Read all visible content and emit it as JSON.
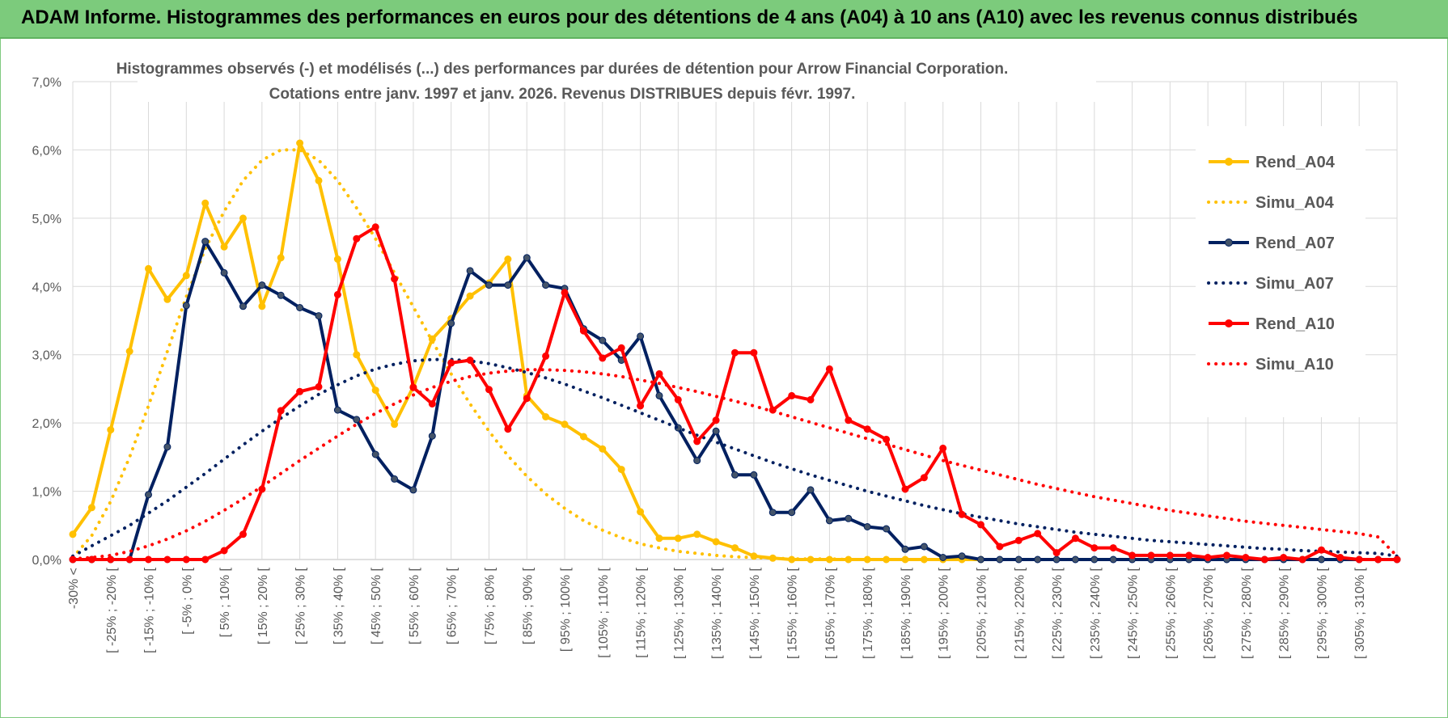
{
  "banner": {
    "title": "ADAM Informe. Histogrammes des performances en euros pour des détentions de 4 ans (A04) à 10 ans (A10) avec les revenus connus distribués"
  },
  "colors": {
    "banner": "#7ccb7c",
    "A04": "#FFC000",
    "A07": "#002060",
    "A10": "#FF0000",
    "grid": "#d9d9d9",
    "axis_text": "#595959"
  },
  "chart_data": {
    "type": "line",
    "title": "Histogrammes observés (-) et modélisés (...) des performances par durées de détention pour Arrow Financial Corporation.",
    "subtitle": "Cotations entre janv. 1997 et janv. 2026. Revenus DISTRIBUES depuis févr. 1997.",
    "xlabel": "",
    "ylabel": "",
    "y_ticks": [
      "0,0%",
      "1,0%",
      "2,0%",
      "3,0%",
      "4,0%",
      "5,0%",
      "6,0%",
      "7,0%"
    ],
    "ylim": [
      0,
      7
    ],
    "grid": true,
    "legend_position": "right",
    "x_labels_shown": [
      "-30% <",
      "[ -25% ; -20% [",
      "[ -15% ; -10% [",
      "[ -5% ; 0% [",
      "[ 5% ; 10% [",
      "[ 15% ; 20% [",
      "[ 25% ; 30% [",
      "[ 35% ; 40% [",
      "[ 45% ; 50% [",
      "[ 55% ; 60% [",
      "[ 65% ; 70% [",
      "[ 75% ; 80% [",
      "[ 85% ; 90% [",
      "[ 95% ; 100% [",
      "[ 105% ; 110% [",
      "[ 115% ; 120% [",
      "[ 125% ; 130% [",
      "[ 135% ; 140% [",
      "[ 145% ; 150% [",
      "[ 155% ; 160% [",
      "[ 165% ; 170% [",
      "[ 175% ; 180% [",
      "[ 185% ; 190% [",
      "[ 195% ; 200% [",
      "[ 205% ; 210% [",
      "[ 215% ; 220% [",
      "[ 225% ; 230% [",
      "[ 235% ; 240% [",
      "[ 245% ; 250% [",
      "[ 255% ; 260% [",
      "[ 265% ; 270% [",
      "[ 275% ; 280% [",
      "[ 285% ; 290% [",
      "[ 295% ; 300% [",
      "[ 305% ; 310% ["
    ],
    "series": [
      {
        "name": "Rend_A04",
        "style": "solid",
        "color": "#FFC000",
        "values": [
          0.37,
          0.76,
          1.9,
          3.05,
          4.26,
          3.81,
          4.16,
          5.22,
          4.58,
          5.0,
          3.71,
          4.42,
          6.1,
          5.55,
          4.4,
          3.0,
          2.48,
          1.98,
          2.53,
          3.23,
          3.53,
          3.86,
          4.05,
          4.4,
          2.4,
          2.09,
          1.98,
          1.8,
          1.62,
          1.32,
          0.7,
          0.31,
          0.31,
          0.37,
          0.26,
          0.17,
          0.05,
          0.02,
          0,
          0,
          0,
          0,
          0,
          0,
          0,
          0,
          0,
          0,
          0
        ]
      },
      {
        "name": "Simu_A04",
        "style": "dotted",
        "color": "#FFC000",
        "values": [
          0.03,
          0.35,
          0.85,
          1.5,
          2.25,
          3.05,
          3.85,
          4.55,
          5.1,
          5.55,
          5.85,
          6.0,
          6.0,
          5.85,
          5.55,
          5.15,
          4.7,
          4.2,
          3.7,
          3.2,
          2.72,
          2.28,
          1.88,
          1.52,
          1.22,
          0.96,
          0.75,
          0.57,
          0.43,
          0.32,
          0.23,
          0.17,
          0.12,
          0.09,
          0.06,
          0.04,
          0.03,
          0.02,
          0.01,
          0.01,
          0.01,
          0,
          0,
          0,
          0,
          0,
          0,
          0,
          0
        ]
      },
      {
        "name": "Rend_A07",
        "style": "solid",
        "color": "#002060",
        "values": [
          0,
          0,
          0,
          0,
          0.95,
          1.65,
          3.72,
          4.66,
          4.2,
          3.71,
          4.02,
          3.87,
          3.69,
          3.57,
          2.19,
          2.05,
          1.54,
          1.18,
          1.02,
          1.81,
          3.46,
          4.23,
          4.02,
          4.02,
          4.42,
          4.02,
          3.97,
          3.38,
          3.21,
          2.92,
          3.27,
          2.4,
          1.93,
          1.45,
          1.88,
          1.24,
          1.24,
          0.69,
          0.69,
          1.02,
          0.57,
          0.6,
          0.48,
          0.45,
          0.15,
          0.19,
          0.03,
          0.05,
          0,
          0,
          0,
          0,
          0,
          0,
          0,
          0,
          0,
          0,
          0,
          0,
          0,
          0,
          0,
          0,
          0,
          0,
          0,
          0,
          0,
          0,
          0
        ]
      },
      {
        "name": "Simu_A07",
        "style": "dotted",
        "color": "#002060",
        "values": [
          0.05,
          0.2,
          0.35,
          0.5,
          0.68,
          0.86,
          1.06,
          1.26,
          1.47,
          1.68,
          1.88,
          2.07,
          2.25,
          2.42,
          2.56,
          2.69,
          2.79,
          2.86,
          2.91,
          2.93,
          2.93,
          2.91,
          2.87,
          2.81,
          2.74,
          2.66,
          2.57,
          2.47,
          2.37,
          2.26,
          2.15,
          2.04,
          1.93,
          1.82,
          1.72,
          1.62,
          1.52,
          1.42,
          1.33,
          1.24,
          1.16,
          1.08,
          1.0,
          0.93,
          0.86,
          0.79,
          0.73,
          0.67,
          0.62,
          0.57,
          0.52,
          0.48,
          0.44,
          0.4,
          0.37,
          0.34,
          0.31,
          0.28,
          0.26,
          0.24,
          0.22,
          0.2,
          0.18,
          0.16,
          0.15,
          0.13,
          0.12,
          0.11,
          0.1,
          0.09,
          0.05
        ]
      },
      {
        "name": "Rend_A10",
        "style": "solid",
        "color": "#FF0000",
        "values": [
          0,
          0,
          0,
          0,
          0,
          0,
          0,
          0,
          0.13,
          0.37,
          1.03,
          2.18,
          2.46,
          2.53,
          3.88,
          4.7,
          4.87,
          4.11,
          2.52,
          2.28,
          2.88,
          2.92,
          2.49,
          1.91,
          2.36,
          2.98,
          3.91,
          3.35,
          2.95,
          3.1,
          2.25,
          2.72,
          2.34,
          1.73,
          2.04,
          3.03,
          3.03,
          2.19,
          2.4,
          2.34,
          2.79,
          2.04,
          1.91,
          1.76,
          1.03,
          1.2,
          1.63,
          0.66,
          0.51,
          0.19,
          0.28,
          0.38,
          0.1,
          0.31,
          0.17,
          0.17,
          0.06,
          0.06,
          0.06,
          0.06,
          0.03,
          0.06,
          0.03,
          0,
          0.03,
          0,
          0.14,
          0.03,
          0,
          0,
          0
        ]
      },
      {
        "name": "Simu_A10",
        "style": "dotted",
        "color": "#FF0000",
        "values": [
          0.01,
          0.03,
          0.06,
          0.12,
          0.2,
          0.3,
          0.42,
          0.56,
          0.72,
          0.89,
          1.07,
          1.26,
          1.45,
          1.63,
          1.81,
          1.98,
          2.14,
          2.28,
          2.41,
          2.52,
          2.61,
          2.68,
          2.73,
          2.76,
          2.78,
          2.78,
          2.77,
          2.75,
          2.72,
          2.68,
          2.63,
          2.58,
          2.52,
          2.46,
          2.39,
          2.32,
          2.25,
          2.17,
          2.09,
          2.01,
          1.93,
          1.85,
          1.77,
          1.69,
          1.61,
          1.53,
          1.45,
          1.38,
          1.31,
          1.24,
          1.17,
          1.1,
          1.04,
          0.98,
          0.92,
          0.87,
          0.82,
          0.77,
          0.72,
          0.68,
          0.64,
          0.6,
          0.56,
          0.53,
          0.5,
          0.47,
          0.44,
          0.41,
          0.38,
          0.33,
          0.05
        ]
      }
    ]
  }
}
